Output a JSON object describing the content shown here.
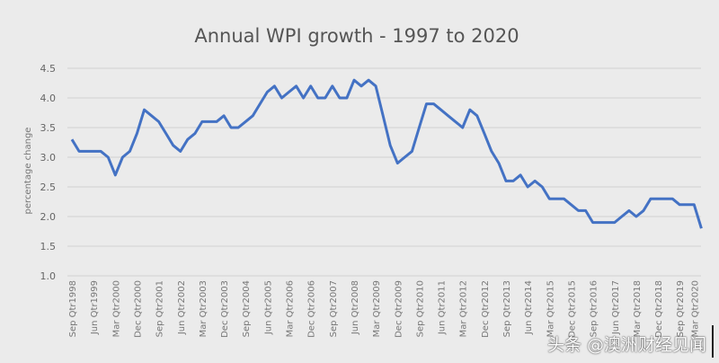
{
  "chart_data": {
    "type": "line",
    "title": "Annual WPI growth - 1997 to 2020",
    "xlabel": "",
    "ylabel": "percentage change",
    "ylim": [
      1.0,
      4.5
    ],
    "yticks": [
      "1.0",
      "1.5",
      "2.0",
      "2.5",
      "3.0",
      "3.5",
      "4.0",
      "4.5"
    ],
    "grid": "horizontal",
    "line_color": "#4472c4",
    "categories": [
      "Sep Qtr1998",
      "Dec Qtr1998",
      "Mar Qtr1999",
      "Jun Qtr1999",
      "Sep Qtr1999",
      "Dec Qtr1999",
      "Mar Qtr2000",
      "Jun Qtr2000",
      "Sep Qtr2000",
      "Dec Qtr2000",
      "Mar Qtr2001",
      "Jun Qtr2001",
      "Sep Qtr2001",
      "Dec Qtr2001",
      "Mar Qtr2002",
      "Jun Qtr2002",
      "Sep Qtr2002",
      "Dec Qtr2002",
      "Mar Qtr2003",
      "Jun Qtr2003",
      "Sep Qtr2003",
      "Dec Qtr2003",
      "Mar Qtr2004",
      "Jun Qtr2004",
      "Sep Qtr2004",
      "Dec Qtr2004",
      "Mar Qtr2005",
      "Jun Qtr2005",
      "Sep Qtr2005",
      "Dec Qtr2005",
      "Mar Qtr2006",
      "Jun Qtr2006",
      "Sep Qtr2006",
      "Dec Qtr2006",
      "Mar Qtr2007",
      "Jun Qtr2007",
      "Sep Qtr2007",
      "Dec Qtr2007",
      "Mar Qtr2008",
      "Jun Qtr2008",
      "Sep Qtr2008",
      "Dec Qtr2008",
      "Mar Qtr2009",
      "Jun Qtr2009",
      "Sep Qtr2009",
      "Dec Qtr2009",
      "Mar Qtr2010",
      "Jun Qtr2010",
      "Sep Qtr2010",
      "Dec Qtr2010",
      "Mar Qtr2011",
      "Jun Qtr2011",
      "Sep Qtr2011",
      "Dec Qtr2011",
      "Mar Qtr2012",
      "Jun Qtr2012",
      "Sep Qtr2012",
      "Dec Qtr2012",
      "Mar Qtr2013",
      "Jun Qtr2013",
      "Sep Qtr2013",
      "Dec Qtr2013",
      "Mar Qtr2014",
      "Jun Qtr2014",
      "Sep Qtr2014",
      "Dec Qtr2014",
      "Mar Qtr2015",
      "Jun Qtr2015",
      "Sep Qtr2015",
      "Dec Qtr2015",
      "Mar Qtr2016",
      "Jun Qtr2016",
      "Sep Qtr2016",
      "Dec Qtr2016",
      "Mar Qtr2017",
      "Jun Qtr2017",
      "Sep Qtr2017",
      "Dec Qtr2017",
      "Mar Qtr2018",
      "Jun Qtr2018",
      "Sep Qtr2018",
      "Dec Qtr2018",
      "Mar Qtr2019",
      "Jun Qtr2019",
      "Sep Qtr2019",
      "Dec Qtr2019",
      "Mar Qtr2020",
      "Jun Qtr2020"
    ],
    "xtick_labels": [
      "Sep Qtr1998",
      "Jun Qtr1999",
      "Mar Qtr2000",
      "Dec Qtr2000",
      "Sep Qtr2001",
      "Jun Qtr2002",
      "Mar Qtr2003",
      "Dec Qtr2003",
      "Sep Qtr2004",
      "Jun Qtr2005",
      "Mar Qtr2006",
      "Dec Qtr2006",
      "Sep Qtr2007",
      "Jun Qtr2008",
      "Mar Qtr2009",
      "Dec Qtr2009",
      "Sep Qtr2010",
      "Jun Qtr2011",
      "Mar Qtr2012",
      "Dec Qtr2012",
      "Sep Qtr2013",
      "Jun Qtr2014",
      "Mar Qtr2015",
      "Dec Qtr2015",
      "Sep Qtr2016",
      "Jun Qtr2017",
      "Mar Qtr2018",
      "Dec Qtr2018",
      "Sep Qtr2019",
      "Mar Qtr2020"
    ],
    "values": [
      3.3,
      3.1,
      3.1,
      3.1,
      3.1,
      3.0,
      2.7,
      3.0,
      3.1,
      3.4,
      3.8,
      3.7,
      3.6,
      3.4,
      3.2,
      3.1,
      3.3,
      3.4,
      3.6,
      3.6,
      3.6,
      3.7,
      3.5,
      3.5,
      3.6,
      3.7,
      3.9,
      4.1,
      4.2,
      4.0,
      4.1,
      4.2,
      4.0,
      4.2,
      4.0,
      4.0,
      4.2,
      4.0,
      4.0,
      4.3,
      4.2,
      4.3,
      4.2,
      3.7,
      3.2,
      2.9,
      3.0,
      3.1,
      3.5,
      3.9,
      3.9,
      3.8,
      3.7,
      3.6,
      3.5,
      3.8,
      3.7,
      3.4,
      3.1,
      2.9,
      2.6,
      2.6,
      2.7,
      2.5,
      2.6,
      2.5,
      2.3,
      2.3,
      2.3,
      2.2,
      2.1,
      2.1,
      1.9,
      1.9,
      1.9,
      1.9,
      2.0,
      2.1,
      2.0,
      2.1,
      2.3,
      2.3,
      2.3,
      2.3,
      2.2,
      2.2,
      2.2,
      1.8
    ]
  },
  "watermark": "头条 @澳洲财经见闻"
}
